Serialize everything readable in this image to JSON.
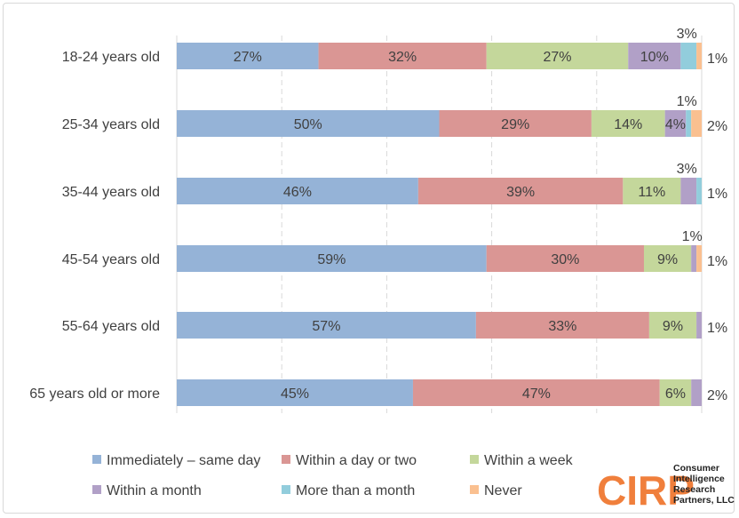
{
  "chart_data": {
    "type": "bar",
    "orientation": "horizontal",
    "stacked": true,
    "categories": [
      "18-24 years old",
      "25-34 years old",
      "35-44 years old",
      "45-54 years old",
      "55-64 years old",
      "65 years old or more"
    ],
    "series": [
      {
        "name": "Immediately – same day",
        "values": [
          27,
          50,
          46,
          59,
          57,
          45
        ],
        "labels": [
          "27%",
          "50%",
          "46%",
          "59%",
          "57%",
          "45%"
        ]
      },
      {
        "name": "Within a day or two",
        "values": [
          32,
          29,
          39,
          30,
          33,
          47
        ],
        "labels": [
          "32%",
          "29%",
          "39%",
          "30%",
          "33%",
          "47%"
        ]
      },
      {
        "name": "Within a week",
        "values": [
          27,
          14,
          11,
          9,
          9,
          6
        ],
        "labels": [
          "27%",
          "14%",
          "11%",
          "9%",
          "9%",
          "6%"
        ]
      },
      {
        "name": "Within a month",
        "values": [
          10,
          4,
          3,
          1,
          1,
          2
        ],
        "labels": [
          "10%",
          "4%",
          "3%",
          "1%",
          "1%",
          "2%"
        ]
      },
      {
        "name": "More than a month",
        "values": [
          3,
          1,
          1,
          0,
          0,
          0
        ],
        "labels": [
          "3%",
          "1%",
          "1%",
          "",
          "",
          ""
        ]
      },
      {
        "name": "Never",
        "values": [
          1,
          2,
          0,
          1,
          0,
          0
        ],
        "labels": [
          "1%",
          "2%",
          "",
          "1%",
          "",
          ""
        ]
      }
    ],
    "xlim": [
      0,
      100
    ],
    "grid": true,
    "legend_position": "bottom",
    "colors": [
      "#95b3d7",
      "#da9694",
      "#c4d79b",
      "#b1a0c7",
      "#92cddc",
      "#fac090"
    ]
  },
  "logo": {
    "main": "CIRP",
    "lines": [
      "Consumer",
      "Intelligence",
      "Research",
      "Partners, LLC"
    ]
  }
}
